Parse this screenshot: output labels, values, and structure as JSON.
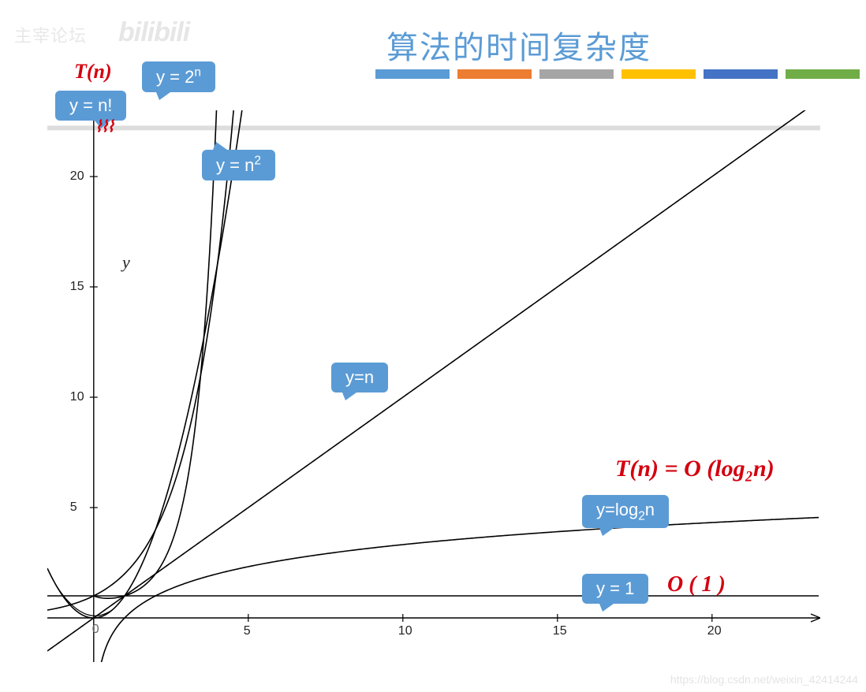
{
  "title": {
    "text": "算法的时间复杂度",
    "color": "#5b9bd5",
    "fontsize": 40
  },
  "watermarks": {
    "left": "主宰论坛",
    "bilibili": "bilibili",
    "csdn": "https://blog.csdn.net/weixin_42414244"
  },
  "swatches": {
    "colors": [
      "#5b9bd5",
      "#ed7d31",
      "#a5a5a5",
      "#ffc000",
      "#4472c4",
      "#70ad47"
    ],
    "width": 94,
    "height": 12,
    "gap": 10
  },
  "chart": {
    "xlim": [
      -1.5,
      23.5
    ],
    "ylim": [
      -2,
      23
    ],
    "xticks": [
      5,
      10,
      15,
      20
    ],
    "yticks": [
      5,
      10,
      15,
      20
    ],
    "ylabel": "y",
    "axis_color": "#000000",
    "tick_fontsize": 16,
    "line_color": "#000000",
    "line_width": 1.6,
    "curves": [
      {
        "name": "y=1",
        "type": "const",
        "value": 1
      },
      {
        "name": "y=log2n",
        "type": "log2"
      },
      {
        "name": "y=n",
        "type": "linear"
      },
      {
        "name": "y=n^2",
        "type": "square"
      },
      {
        "name": "y=2^n",
        "type": "exp2"
      },
      {
        "name": "y=n!",
        "type": "factorial"
      }
    ]
  },
  "callouts": {
    "bg_color": "#5b9bd5",
    "text_color": "#ffffff",
    "fontsize": 22,
    "radius": 6,
    "items": {
      "nfact": {
        "html": "y = n!"
      },
      "exp2": {
        "html": "y = 2<sup>n</sup>"
      },
      "square": {
        "html": "y = n<sup>2</sup>"
      },
      "linear": {
        "html": "y=n"
      },
      "log": {
        "html": "y=log<sub>2</sub>n"
      },
      "one": {
        "html": "y = 1"
      }
    }
  },
  "handwritten": {
    "color": "#d4000f",
    "items": {
      "tn": {
        "text": "T(n)",
        "fontsize": 26
      },
      "tlog": {
        "text": "T(n) = O (log₂n)",
        "fontsize": 30
      },
      "o1": {
        "text": "O ( 1 )",
        "fontsize": 28
      }
    }
  }
}
